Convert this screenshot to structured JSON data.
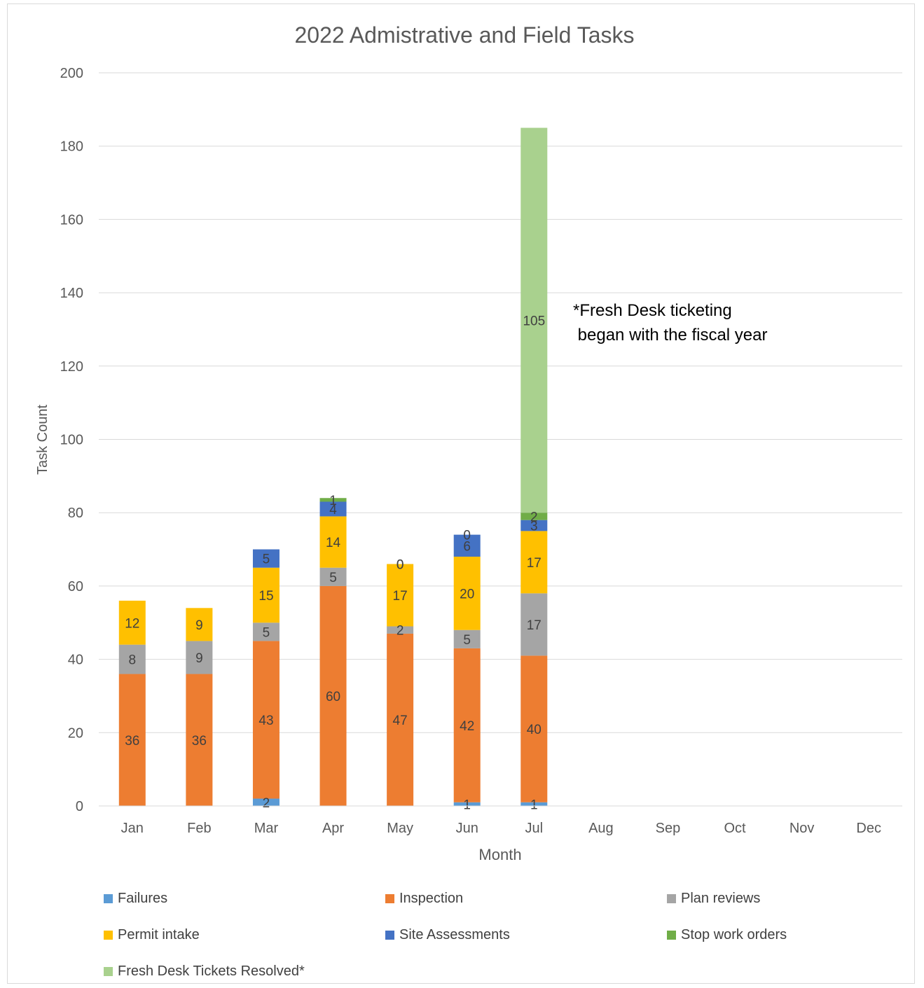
{
  "chart_data": {
    "type": "bar",
    "stacked": true,
    "title": "2022 Admistrative and Field Tasks",
    "xlabel": "Month",
    "ylabel": "Task Count",
    "ylim": [
      0,
      200
    ],
    "yticks": [
      "0",
      "20",
      "40",
      "60",
      "80",
      "100",
      "120",
      "140",
      "160",
      "180",
      "200"
    ],
    "grid": true,
    "legend_position": "bottom",
    "categories": [
      "Jan",
      "Feb",
      "Mar",
      "Apr",
      "May",
      "Jun",
      "Jul",
      "Aug",
      "Sep",
      "Oct",
      "Nov",
      "Dec"
    ],
    "series": [
      {
        "name": "Failures",
        "color": "#5b9bd5",
        "values": [
          0,
          0,
          2,
          0,
          0,
          1,
          1,
          null,
          null,
          null,
          null,
          null
        ]
      },
      {
        "name": "Inspection",
        "color": "#ed7d31",
        "values": [
          36,
          36,
          43,
          60,
          47,
          42,
          40,
          null,
          null,
          null,
          null,
          null
        ]
      },
      {
        "name": "Plan reviews",
        "color": "#a5a5a5",
        "values": [
          8,
          9,
          5,
          5,
          2,
          5,
          17,
          null,
          null,
          null,
          null,
          null
        ]
      },
      {
        "name": "Permit intake",
        "color": "#ffc000",
        "values": [
          12,
          9,
          15,
          14,
          17,
          20,
          17,
          null,
          null,
          null,
          null,
          null
        ]
      },
      {
        "name": "Site Assessments",
        "color": "#4472c4",
        "values": [
          0,
          0,
          5,
          4,
          0,
          6,
          3,
          null,
          null,
          null,
          null,
          null
        ]
      },
      {
        "name": "Stop work orders",
        "color": "#70ad47",
        "values": [
          0,
          0,
          0,
          1,
          0,
          0,
          2,
          null,
          null,
          null,
          null,
          null
        ]
      },
      {
        "name": "Fresh Desk Tickets Resolved*",
        "color": "#a9d18e",
        "values": [
          0,
          0,
          0,
          0,
          0,
          0,
          105,
          null,
          null,
          null,
          null,
          null
        ]
      }
    ],
    "data_labels": [
      {
        "series": 0,
        "month": 2,
        "text": "2"
      },
      {
        "series": 0,
        "month": 5,
        "text": "1"
      },
      {
        "series": 0,
        "month": 6,
        "text": "1"
      },
      {
        "series": 1,
        "month": 0,
        "text": "36"
      },
      {
        "series": 1,
        "month": 1,
        "text": "36"
      },
      {
        "series": 1,
        "month": 2,
        "text": "43"
      },
      {
        "series": 1,
        "month": 3,
        "text": "60"
      },
      {
        "series": 1,
        "month": 4,
        "text": "47"
      },
      {
        "series": 1,
        "month": 5,
        "text": "42"
      },
      {
        "series": 1,
        "month": 6,
        "text": "40"
      },
      {
        "series": 2,
        "month": 0,
        "text": "8"
      },
      {
        "series": 2,
        "month": 1,
        "text": "9"
      },
      {
        "series": 2,
        "month": 2,
        "text": "5"
      },
      {
        "series": 2,
        "month": 3,
        "text": "5"
      },
      {
        "series": 2,
        "month": 4,
        "text": "2"
      },
      {
        "series": 2,
        "month": 5,
        "text": "5"
      },
      {
        "series": 2,
        "month": 6,
        "text": "17"
      },
      {
        "series": 3,
        "month": 0,
        "text": "12"
      },
      {
        "series": 3,
        "month": 1,
        "text": "9"
      },
      {
        "series": 3,
        "month": 2,
        "text": "15"
      },
      {
        "series": 3,
        "month": 3,
        "text": "14"
      },
      {
        "series": 3,
        "month": 4,
        "text": "17"
      },
      {
        "series": 3,
        "month": 5,
        "text": "20"
      },
      {
        "series": 3,
        "month": 6,
        "text": "17"
      },
      {
        "series": 4,
        "month": 2,
        "text": "5"
      },
      {
        "series": 4,
        "month": 3,
        "text": "4"
      },
      {
        "series": 4,
        "month": 4,
        "text": "0"
      },
      {
        "series": 4,
        "month": 5,
        "text": "6"
      },
      {
        "series": 4,
        "month": 6,
        "text": "3"
      },
      {
        "series": 5,
        "month": 3,
        "text": "1"
      },
      {
        "series": 5,
        "month": 4,
        "text": "0"
      },
      {
        "series": 5,
        "month": 5,
        "text": "0"
      },
      {
        "series": 5,
        "month": 6,
        "text": "2"
      },
      {
        "series": 6,
        "month": 6,
        "text": "105"
      }
    ],
    "annotation": "*Fresh Desk ticketing\n began with the fiscal year"
  }
}
